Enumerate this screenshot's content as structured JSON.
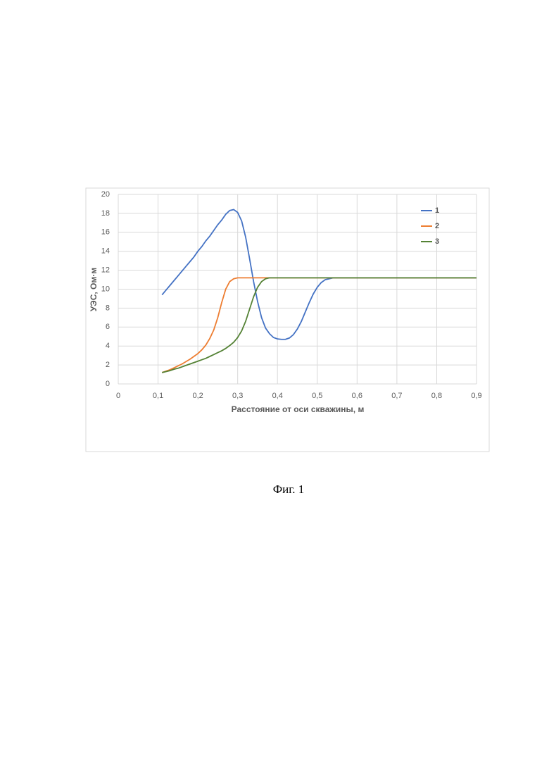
{
  "chart_data": {
    "type": "line",
    "caption": "Фиг. 1",
    "xlabel": "Расстояние от оси скважины, м",
    "ylabel": "УЭС, Ом·м",
    "xlim": [
      0,
      0.9
    ],
    "ylim": [
      0,
      20
    ],
    "xticks": [
      0,
      {
        "value": 0.1,
        "label": "0,1"
      },
      {
        "value": 0.2,
        "label": "0,2"
      },
      {
        "value": 0.3,
        "label": "0,3"
      },
      {
        "value": 0.4,
        "label": "0,4"
      },
      {
        "value": 0.5,
        "label": "0,5"
      },
      {
        "value": 0.6,
        "label": "0,6"
      },
      {
        "value": 0.7,
        "label": "0,7"
      },
      {
        "value": 0.8,
        "label": "0,8"
      },
      {
        "value": 0.9,
        "label": "0,9"
      }
    ],
    "yticks": [
      0,
      2,
      4,
      6,
      8,
      10,
      12,
      14,
      16,
      18,
      20
    ],
    "grid": true,
    "legend": "upper right",
    "x": [
      0.11,
      0.12,
      0.13,
      0.14,
      0.15,
      0.16,
      0.17,
      0.18,
      0.19,
      0.2,
      0.21,
      0.22,
      0.23,
      0.24,
      0.25,
      0.26,
      0.27,
      0.28,
      0.29,
      0.3,
      0.31,
      0.32,
      0.33,
      0.34,
      0.35,
      0.36,
      0.37,
      0.38,
      0.39,
      0.4,
      0.41,
      0.42,
      0.43,
      0.44,
      0.45,
      0.46,
      0.47,
      0.48,
      0.49,
      0.5,
      0.51,
      0.52,
      0.53,
      0.54,
      0.55,
      0.56,
      0.57,
      0.58,
      0.59,
      0.6,
      0.7,
      0.8,
      0.9
    ],
    "series": [
      {
        "name": "1",
        "color": "#4472c4",
        "values": [
          9.4,
          9.9,
          10.4,
          10.9,
          11.4,
          11.9,
          12.4,
          12.9,
          13.4,
          14.0,
          14.5,
          15.1,
          15.6,
          16.2,
          16.8,
          17.3,
          17.9,
          18.3,
          18.4,
          18.1,
          17.2,
          15.5,
          13.2,
          10.8,
          8.7,
          7.0,
          5.9,
          5.3,
          4.9,
          4.75,
          4.7,
          4.7,
          4.85,
          5.2,
          5.8,
          6.6,
          7.6,
          8.6,
          9.5,
          10.2,
          10.7,
          11.0,
          11.1,
          11.2,
          11.2,
          11.2,
          11.2,
          11.2,
          11.2,
          11.2,
          11.2,
          11.2,
          11.2
        ]
      },
      {
        "name": "2",
        "color": "#ed7d31",
        "values": [
          1.2,
          1.35,
          1.5,
          1.7,
          1.9,
          2.1,
          2.35,
          2.6,
          2.9,
          3.2,
          3.6,
          4.1,
          4.8,
          5.7,
          7.0,
          8.6,
          10.0,
          10.8,
          11.1,
          11.2,
          11.2,
          11.2,
          11.2,
          11.2,
          11.2,
          11.2,
          11.2,
          11.2,
          11.2,
          11.2,
          11.2,
          11.2,
          11.2,
          11.2,
          11.2,
          11.2,
          11.2,
          11.2,
          11.2,
          11.2,
          11.2,
          11.2,
          11.2,
          11.2,
          11.2,
          11.2,
          11.2,
          11.2,
          11.2,
          11.2,
          11.2,
          11.2,
          11.2
        ]
      },
      {
        "name": "3",
        "color": "#548235",
        "values": [
          1.2,
          1.3,
          1.4,
          1.55,
          1.65,
          1.8,
          1.95,
          2.1,
          2.25,
          2.4,
          2.55,
          2.7,
          2.9,
          3.1,
          3.3,
          3.5,
          3.75,
          4.05,
          4.4,
          4.9,
          5.6,
          6.6,
          7.9,
          9.2,
          10.2,
          10.8,
          11.1,
          11.2,
          11.2,
          11.2,
          11.2,
          11.2,
          11.2,
          11.2,
          11.2,
          11.2,
          11.2,
          11.2,
          11.2,
          11.2,
          11.2,
          11.2,
          11.2,
          11.2,
          11.2,
          11.2,
          11.2,
          11.2,
          11.2,
          11.2,
          11.2,
          11.2,
          11.2
        ]
      }
    ]
  }
}
